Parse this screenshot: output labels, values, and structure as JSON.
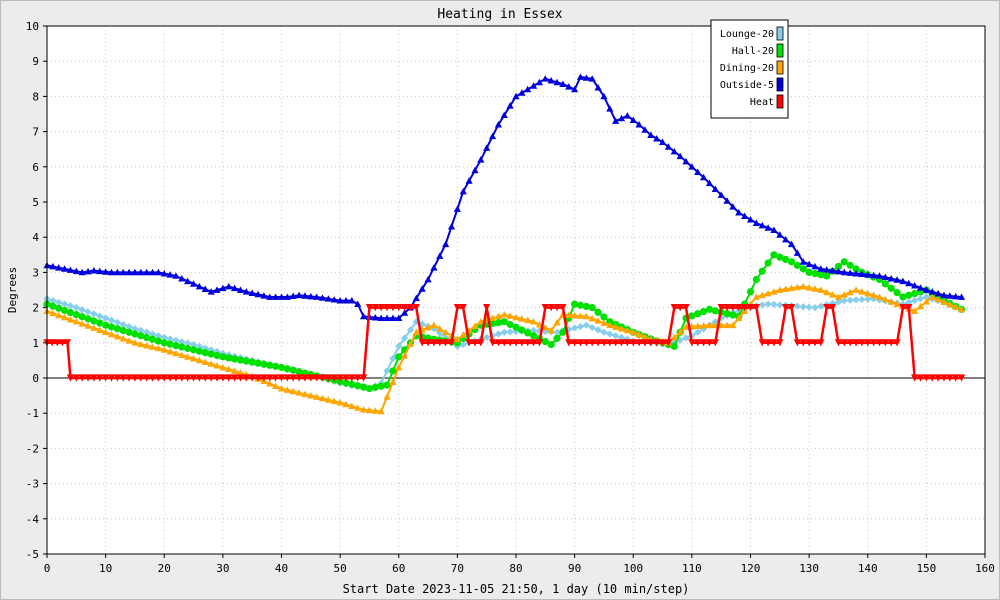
{
  "chart_data": {
    "type": "line",
    "title": "Heating in Essex",
    "xlabel": "Start Date 2023-11-05 21:50, 1 day (10 min/step)",
    "ylabel": "Degrees",
    "xlim": [
      0,
      160
    ],
    "ylim": [
      -5,
      10
    ],
    "x_ticks": [
      0,
      10,
      20,
      30,
      40,
      50,
      60,
      70,
      80,
      90,
      100,
      110,
      120,
      130,
      140,
      150,
      160
    ],
    "y_ticks": [
      -5,
      -4,
      -3,
      -2,
      -1,
      0,
      1,
      2,
      3,
      4,
      5,
      6,
      7,
      8,
      9,
      10
    ],
    "grid": true,
    "legend_position": "top-right",
    "series": [
      {
        "name": "Lounge-20",
        "color": "#87ceeb",
        "marker": "diamond",
        "points": [
          [
            0,
            2.25
          ],
          [
            5,
            2.0
          ],
          [
            10,
            1.7
          ],
          [
            15,
            1.4
          ],
          [
            20,
            1.15
          ],
          [
            25,
            0.95
          ],
          [
            30,
            0.7
          ],
          [
            35,
            0.5
          ],
          [
            40,
            0.3
          ],
          [
            45,
            0.1
          ],
          [
            50,
            -0.15
          ],
          [
            55,
            -0.3
          ],
          [
            57,
            -0.15
          ],
          [
            60,
            0.9
          ],
          [
            63,
            1.6
          ],
          [
            66,
            1.4
          ],
          [
            70,
            0.9
          ],
          [
            74,
            1.1
          ],
          [
            78,
            1.3
          ],
          [
            83,
            1.35
          ],
          [
            87,
            1.3
          ],
          [
            92,
            1.5
          ],
          [
            95,
            1.3
          ],
          [
            100,
            1.05
          ],
          [
            106,
            0.95
          ],
          [
            110,
            1.2
          ],
          [
            115,
            1.7
          ],
          [
            119,
            2.0
          ],
          [
            123,
            2.1
          ],
          [
            127,
            2.05
          ],
          [
            131,
            2.0
          ],
          [
            136,
            2.2
          ],
          [
            141,
            2.25
          ],
          [
            146,
            2.1
          ],
          [
            150,
            2.3
          ],
          [
            153,
            2.15
          ],
          [
            156,
            1.95
          ]
        ]
      },
      {
        "name": "Hall-20",
        "color": "#00e000",
        "marker": "circle",
        "points": [
          [
            0,
            2.1
          ],
          [
            5,
            1.8
          ],
          [
            10,
            1.5
          ],
          [
            15,
            1.25
          ],
          [
            20,
            1.0
          ],
          [
            25,
            0.8
          ],
          [
            30,
            0.6
          ],
          [
            35,
            0.45
          ],
          [
            40,
            0.3
          ],
          [
            45,
            0.1
          ],
          [
            50,
            -0.1
          ],
          [
            55,
            -0.3
          ],
          [
            58,
            -0.2
          ],
          [
            60,
            0.6
          ],
          [
            63,
            1.2
          ],
          [
            66,
            1.1
          ],
          [
            70,
            1.0
          ],
          [
            74,
            1.5
          ],
          [
            78,
            1.6
          ],
          [
            83,
            1.2
          ],
          [
            86,
            0.95
          ],
          [
            88,
            1.3
          ],
          [
            90,
            2.1
          ],
          [
            93,
            2.0
          ],
          [
            96,
            1.6
          ],
          [
            100,
            1.3
          ],
          [
            104,
            1.05
          ],
          [
            107,
            0.9
          ],
          [
            109,
            1.7
          ],
          [
            113,
            1.95
          ],
          [
            118,
            1.75
          ],
          [
            121,
            2.8
          ],
          [
            124,
            3.5
          ],
          [
            127,
            3.3
          ],
          [
            130,
            3.0
          ],
          [
            133,
            2.9
          ],
          [
            136,
            3.3
          ],
          [
            139,
            3.0
          ],
          [
            142,
            2.8
          ],
          [
            146,
            2.3
          ],
          [
            150,
            2.5
          ],
          [
            153,
            2.2
          ],
          [
            156,
            1.95
          ]
        ]
      },
      {
        "name": "Dining-20",
        "color": "#ffa500",
        "marker": "triangle",
        "points": [
          [
            0,
            1.9
          ],
          [
            5,
            1.6
          ],
          [
            10,
            1.3
          ],
          [
            15,
            1.0
          ],
          [
            20,
            0.8
          ],
          [
            25,
            0.55
          ],
          [
            30,
            0.3
          ],
          [
            35,
            0.05
          ],
          [
            40,
            -0.3
          ],
          [
            45,
            -0.5
          ],
          [
            50,
            -0.7
          ],
          [
            54,
            -0.9
          ],
          [
            57,
            -0.95
          ],
          [
            60,
            0.3
          ],
          [
            63,
            1.3
          ],
          [
            66,
            1.5
          ],
          [
            70,
            1.1
          ],
          [
            74,
            1.6
          ],
          [
            78,
            1.8
          ],
          [
            83,
            1.6
          ],
          [
            86,
            1.35
          ],
          [
            88,
            1.8
          ],
          [
            92,
            1.75
          ],
          [
            96,
            1.5
          ],
          [
            100,
            1.3
          ],
          [
            103,
            1.1
          ],
          [
            106,
            1.0
          ],
          [
            109,
            1.45
          ],
          [
            113,
            1.5
          ],
          [
            117,
            1.5
          ],
          [
            121,
            2.3
          ],
          [
            125,
            2.5
          ],
          [
            129,
            2.6
          ],
          [
            132,
            2.5
          ],
          [
            135,
            2.3
          ],
          [
            138,
            2.5
          ],
          [
            142,
            2.3
          ],
          [
            145,
            2.1
          ],
          [
            148,
            1.9
          ],
          [
            151,
            2.3
          ],
          [
            156,
            1.95
          ]
        ]
      },
      {
        "name": "Outside-5",
        "color": "#0000dd",
        "marker": "triangle",
        "points": [
          [
            0,
            3.2
          ],
          [
            3,
            3.1
          ],
          [
            6,
            3.0
          ],
          [
            8,
            3.05
          ],
          [
            11,
            3.0
          ],
          [
            15,
            3.0
          ],
          [
            19,
            3.0
          ],
          [
            22,
            2.9
          ],
          [
            26,
            2.6
          ],
          [
            28,
            2.45
          ],
          [
            31,
            2.6
          ],
          [
            34,
            2.45
          ],
          [
            38,
            2.3
          ],
          [
            41,
            2.3
          ],
          [
            43,
            2.35
          ],
          [
            46,
            2.3
          ],
          [
            50,
            2.2
          ],
          [
            52,
            2.2
          ],
          [
            53,
            2.1
          ],
          [
            54,
            1.75
          ],
          [
            57,
            1.7
          ],
          [
            60,
            1.7
          ],
          [
            62,
            2.0
          ],
          [
            65,
            2.8
          ],
          [
            68,
            3.8
          ],
          [
            71,
            5.3
          ],
          [
            74,
            6.2
          ],
          [
            77,
            7.2
          ],
          [
            80,
            8.0
          ],
          [
            83,
            8.3
          ],
          [
            85,
            8.5
          ],
          [
            88,
            8.35
          ],
          [
            90,
            8.2
          ],
          [
            91,
            8.55
          ],
          [
            93,
            8.5
          ],
          [
            95,
            8.0
          ],
          [
            97,
            7.3
          ],
          [
            99,
            7.45
          ],
          [
            101,
            7.2
          ],
          [
            103,
            6.9
          ],
          [
            105,
            6.7
          ],
          [
            108,
            6.3
          ],
          [
            112,
            5.7
          ],
          [
            115,
            5.2
          ],
          [
            118,
            4.7
          ],
          [
            121,
            4.4
          ],
          [
            124,
            4.2
          ],
          [
            127,
            3.8
          ],
          [
            129,
            3.3
          ],
          [
            132,
            3.1
          ],
          [
            136,
            3.0
          ],
          [
            139,
            2.95
          ],
          [
            142,
            2.9
          ],
          [
            146,
            2.75
          ],
          [
            150,
            2.5
          ],
          [
            153,
            2.35
          ],
          [
            156,
            2.3
          ]
        ]
      },
      {
        "name": "Heat",
        "color": "#ff0000",
        "marker": "triangle-down",
        "step": true,
        "points": [
          [
            0,
            1
          ],
          [
            3.5,
            1
          ],
          [
            4,
            0
          ],
          [
            54,
            0
          ],
          [
            55,
            2
          ],
          [
            63,
            2
          ],
          [
            64,
            1
          ],
          [
            69,
            1
          ],
          [
            70,
            2
          ],
          [
            71,
            2
          ],
          [
            72,
            1
          ],
          [
            74,
            1
          ],
          [
            75,
            2
          ],
          [
            76,
            1
          ],
          [
            84,
            1
          ],
          [
            85,
            2
          ],
          [
            88,
            2
          ],
          [
            89,
            1
          ],
          [
            106,
            1
          ],
          [
            107,
            2
          ],
          [
            109,
            2
          ],
          [
            110,
            1
          ],
          [
            114,
            1
          ],
          [
            115,
            2
          ],
          [
            121,
            2
          ],
          [
            122,
            1
          ],
          [
            125,
            1
          ],
          [
            126,
            2
          ],
          [
            127,
            2
          ],
          [
            128,
            1
          ],
          [
            132,
            1
          ],
          [
            133,
            2
          ],
          [
            134,
            2
          ],
          [
            135,
            1
          ],
          [
            145,
            1
          ],
          [
            146,
            2
          ],
          [
            147,
            2
          ],
          [
            148,
            0
          ],
          [
            156,
            0
          ]
        ]
      }
    ]
  }
}
